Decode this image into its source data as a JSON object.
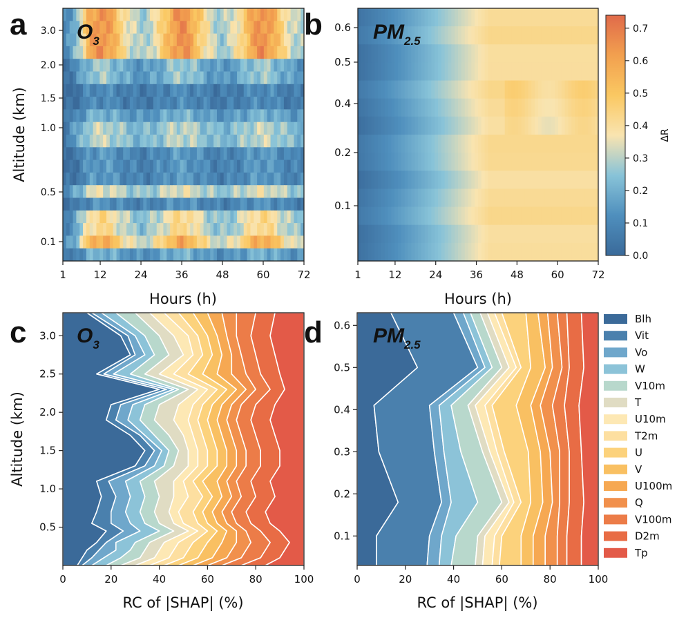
{
  "chart_data": [
    {
      "panel": "a",
      "type": "heatmap",
      "title": "O3",
      "title_base": "O",
      "title_sub": "3",
      "xlabel": "Hours (h)",
      "ylabel": "Altitude (km)",
      "xticks": [
        "1",
        "12",
        "24",
        "36",
        "48",
        "60",
        "72"
      ],
      "yticks": [
        "0.1",
        "0.5",
        "1.0",
        "1.5",
        "2.0",
        "3.0"
      ],
      "xlim": [
        1,
        72
      ],
      "value_range": [
        0.0,
        0.75
      ],
      "levels": 20,
      "notes": "Delta R varies with hour; peaks near 12 h, 36 h and 60 h at ~3 km and ~0.1 km"
    },
    {
      "panel": "b",
      "type": "heatmap",
      "title": "PM2.5",
      "title_base": "PM",
      "title_sub": "2.5",
      "xlabel": "Hours (h)",
      "ylabel": "",
      "xticks": [
        "1",
        "12",
        "24",
        "36",
        "48",
        "60",
        "72"
      ],
      "yticks": [
        "0.1",
        "0.2",
        "0.4",
        "0.5",
        "0.6"
      ],
      "xlim": [
        1,
        72
      ],
      "value_range": [
        0.0,
        0.75
      ],
      "levels": 14,
      "notes": "Delta R increases monotonically with hour from ~0.05 to ~0.45"
    },
    {
      "panel": "colorbar",
      "type": "colorbar",
      "label": "ΔR",
      "ticks": [
        "0.0",
        "0.1",
        "0.2",
        "0.3",
        "0.4",
        "0.5",
        "0.6",
        "0.7"
      ],
      "range": [
        0.0,
        0.74
      ],
      "stops": [
        "#3a6a9a",
        "#4f8fbd",
        "#88c3d8",
        "#f9e4b0",
        "#fac862",
        "#f2a04f",
        "#e06a4a"
      ]
    },
    {
      "panel": "c",
      "type": "area",
      "title": "O3",
      "title_base": "O",
      "title_sub": "3",
      "xlabel": "RC of |SHAP| (%)",
      "ylabel": "Altitude (km)",
      "xticks": [
        "0",
        "20",
        "40",
        "60",
        "80",
        "100"
      ],
      "yticks": [
        "0.5",
        "1.0",
        "1.5",
        "2.0",
        "2.5",
        "3.0"
      ],
      "xlim": [
        0,
        100
      ],
      "ylim": [
        0.0,
        3.3
      ],
      "altitudes": [
        0.0,
        0.1,
        0.2,
        0.3,
        0.45,
        0.55,
        0.7,
        0.9,
        1.1,
        1.3,
        1.5,
        1.7,
        1.9,
        2.1,
        2.3,
        2.5,
        2.75,
        3.0,
        3.3
      ],
      "boundaries": [
        [
          6,
          8,
          10,
          14,
          18,
          12,
          14,
          16,
          14,
          30,
          34,
          28,
          18,
          20,
          40,
          14,
          28,
          24,
          10
        ],
        [
          8,
          12,
          15,
          18,
          25,
          20,
          20,
          22,
          19,
          34,
          38,
          32,
          22,
          24,
          43,
          17,
          30,
          27,
          12
        ],
        [
          12,
          17,
          22,
          22,
          32,
          28,
          26,
          28,
          26,
          38,
          41,
          34,
          27,
          29,
          46,
          21,
          34,
          30,
          16
        ],
        [
          18,
          24,
          28,
          30,
          40,
          34,
          32,
          34,
          32,
          42,
          44,
          38,
          32,
          34,
          48,
          28,
          38,
          34,
          22
        ],
        [
          24,
          32,
          34,
          36,
          46,
          40,
          38,
          40,
          38,
          46,
          48,
          44,
          38,
          40,
          52,
          34,
          44,
          40,
          30
        ],
        [
          30,
          38,
          40,
          42,
          52,
          46,
          44,
          46,
          46,
          52,
          52,
          50,
          46,
          48,
          56,
          40,
          50,
          46,
          36
        ],
        [
          36,
          44,
          46,
          48,
          56,
          50,
          48,
          52,
          50,
          56,
          56,
          54,
          52,
          54,
          60,
          46,
          54,
          52,
          42
        ],
        [
          42,
          50,
          52,
          54,
          60,
          56,
          54,
          58,
          54,
          60,
          60,
          58,
          56,
          58,
          64,
          52,
          58,
          56,
          48
        ],
        [
          48,
          56,
          58,
          60,
          64,
          60,
          58,
          62,
          58,
          64,
          64,
          62,
          60,
          62,
          68,
          58,
          62,
          60,
          54
        ],
        [
          54,
          62,
          64,
          66,
          68,
          64,
          62,
          66,
          64,
          68,
          68,
          66,
          64,
          66,
          72,
          64,
          66,
          64,
          60
        ],
        [
          60,
          68,
          70,
          72,
          72,
          68,
          66,
          70,
          68,
          72,
          72,
          70,
          68,
          70,
          76,
          70,
          70,
          68,
          66
        ],
        [
          66,
          74,
          76,
          78,
          76,
          72,
          70,
          74,
          72,
          76,
          76,
          74,
          72,
          74,
          80,
          76,
          74,
          72,
          72
        ],
        [
          74,
          82,
          84,
          86,
          82,
          78,
          76,
          80,
          78,
          82,
          82,
          80,
          78,
          80,
          86,
          82,
          80,
          78,
          80
        ],
        [
          84,
          90,
          92,
          94,
          90,
          86,
          84,
          88,
          86,
          90,
          90,
          88,
          86,
          88,
          92,
          90,
          88,
          86,
          88
        ],
        [
          100,
          100,
          100,
          100,
          100,
          100,
          100,
          100,
          100,
          100,
          100,
          100,
          100,
          100,
          100,
          100,
          100,
          100,
          100
        ]
      ]
    },
    {
      "panel": "d",
      "type": "area",
      "title": "PM2.5",
      "title_base": "PM",
      "title_sub": "2.5",
      "xlabel": "RC of |SHAP| (%)",
      "ylabel": "",
      "xticks": [
        "0",
        "20",
        "40",
        "60",
        "80",
        "100"
      ],
      "yticks": [
        "0.1",
        "0.2",
        "0.3",
        "0.4",
        "0.5",
        "0.6"
      ],
      "xlim": [
        0,
        100
      ],
      "ylim": [
        0.03,
        0.63
      ],
      "altitudes": [
        0.03,
        0.1,
        0.18,
        0.3,
        0.41,
        0.5,
        0.63
      ],
      "boundaries": [
        [
          8,
          8,
          17,
          9,
          7,
          25,
          14
        ],
        [
          29,
          30,
          35,
          32,
          30,
          50,
          40
        ],
        [
          34,
          35,
          39,
          36,
          34,
          53,
          44
        ],
        [
          39,
          41,
          50,
          43,
          39,
          56,
          47
        ],
        [
          49,
          50,
          60,
          52,
          46,
          60,
          51
        ],
        [
          52,
          53,
          63,
          55,
          49,
          63,
          54
        ],
        [
          56,
          57,
          65,
          58,
          53,
          66,
          57
        ],
        [
          59,
          60,
          68,
          61,
          56,
          68,
          60
        ],
        [
          68,
          68,
          72,
          71,
          66,
          72,
          70
        ],
        [
          73,
          73,
          77,
          76,
          72,
          78,
          75
        ],
        [
          78,
          78,
          81,
          80,
          76,
          81,
          79
        ],
        [
          83,
          83,
          84,
          84,
          81,
          85,
          83
        ],
        [
          87,
          87,
          88,
          88,
          86,
          88,
          87
        ],
        [
          93,
          93,
          94,
          93,
          92,
          94,
          93
        ],
        [
          100,
          100,
          100,
          100,
          100,
          100,
          100
        ]
      ]
    }
  ],
  "legend": {
    "items": [
      "Blh",
      "Vit",
      "Vo",
      "W",
      "V10m",
      "T",
      "U10m",
      "T2m",
      "U",
      "V",
      "U100m",
      "Q",
      "V100m",
      "D2m",
      "Tp"
    ],
    "colors": [
      "#3b6a99",
      "#4a80ad",
      "#6fa7cb",
      "#8cc3d8",
      "#b8d8cc",
      "#e0dcc3",
      "#fde8b4",
      "#fddfa0",
      "#fcd27c",
      "#f9c062",
      "#f6a852",
      "#f1904c",
      "#ec7c48",
      "#e86c45",
      "#e35a48"
    ]
  },
  "panel_labels": {
    "a": "a",
    "b": "b",
    "c": "c",
    "d": "d"
  }
}
